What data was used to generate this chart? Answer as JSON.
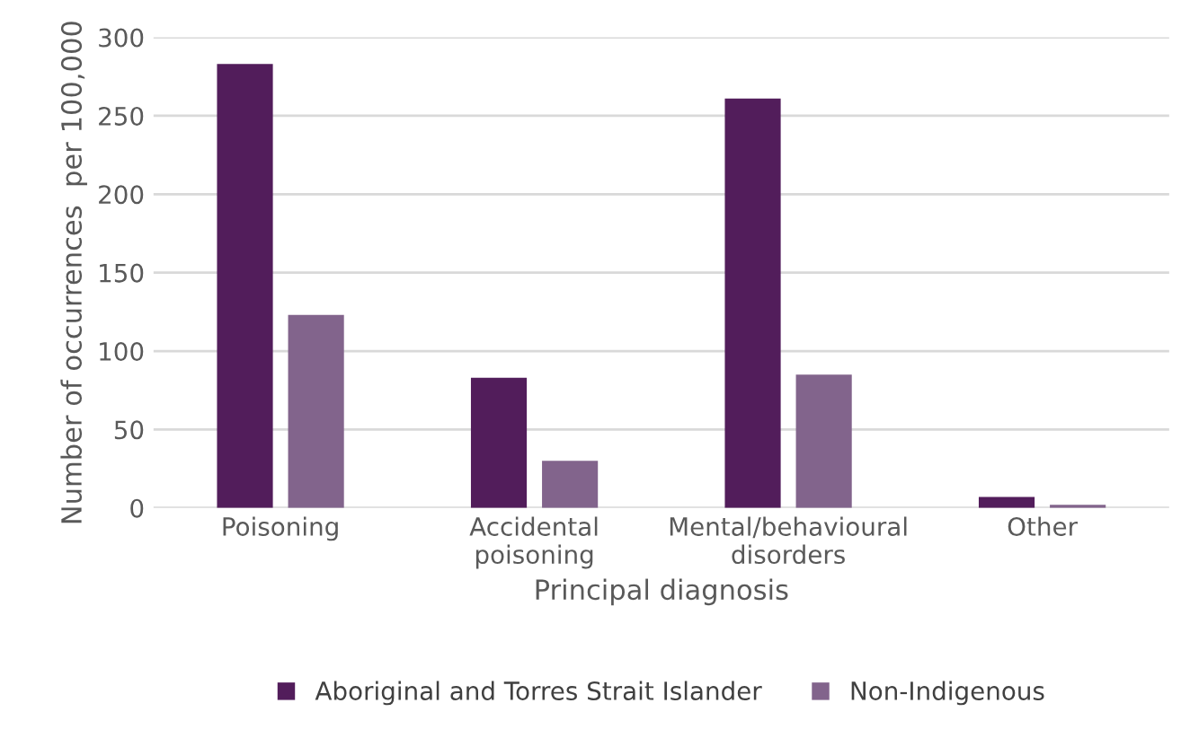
{
  "chart_data": {
    "type": "bar",
    "xlabel": "Principal diagnosis",
    "ylabel": "Number of occurrences  per 100,000",
    "categories": [
      "Poisoning",
      "Accidental\npoisoning",
      "Mental/behavioural\ndisorders",
      "Other"
    ],
    "series": [
      {
        "name": "Aboriginal and Torres Strait Islander",
        "color": "#521d5b",
        "values": [
          283,
          83,
          261,
          7
        ]
      },
      {
        "name": "Non-Indigenous",
        "color": "#82648c",
        "values": [
          123,
          30,
          85,
          2
        ]
      }
    ],
    "ylim": [
      0,
      300
    ],
    "yticks": [
      0,
      50,
      100,
      150,
      200,
      250,
      300
    ],
    "grid": "y",
    "legend": "bottom"
  }
}
